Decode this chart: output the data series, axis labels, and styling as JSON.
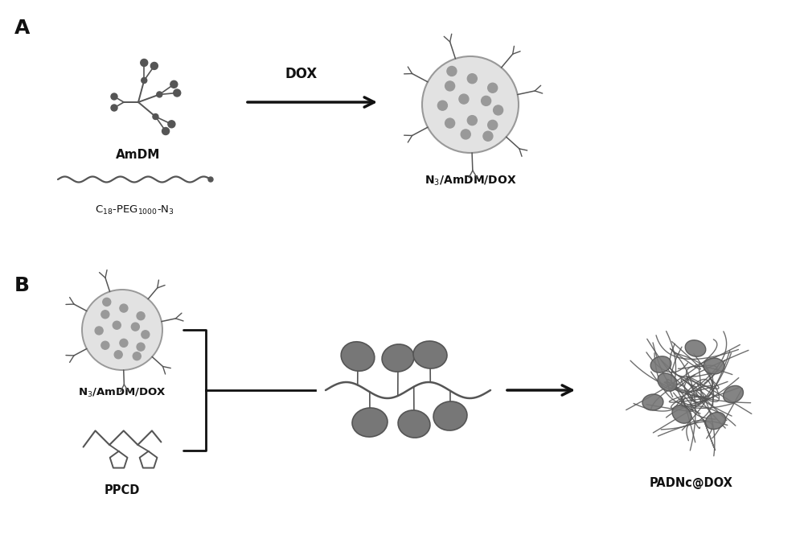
{
  "bg_color": "#ffffff",
  "panel_A_label": "A",
  "panel_B_label": "B",
  "label_AmDM": "AmDM",
  "label_C18PEG": "C$_{18}$-PEG$_{1000}$-N$_3$",
  "label_N3AmDMDOX": "N$_3$/AmDM/DOX",
  "label_DOX": "DOX",
  "label_N3AmDMDOX_B": "N$_3$/AmDM/DOX",
  "label_PPCD": "PPCD",
  "label_PADNc": "PADNc@DOX",
  "gray_dark": "#555555",
  "gray_mid": "#777777",
  "gray_light": "#aaaaaa",
  "gray_very_light": "#d8d8d8",
  "black": "#111111"
}
